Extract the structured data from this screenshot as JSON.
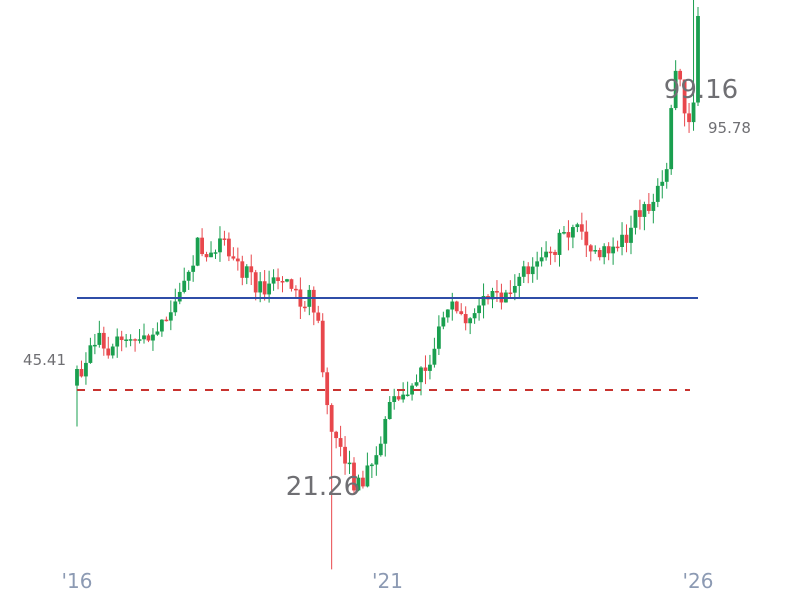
{
  "chart_data": {
    "type": "candlestick",
    "colors": {
      "up": "#1a9f4f",
      "down": "#e8474c",
      "reference_line": "#2f4ea8",
      "dashed_line": "#c8332f",
      "labels": "#6f6f73",
      "ticks": "#8c9ab3"
    },
    "x_ticks": [
      {
        "label": "'16",
        "year": 2016.0
      },
      {
        "label": "'21",
        "year": 2021.0
      },
      {
        "label": "'26",
        "year": 2026.0
      }
    ],
    "annotations": {
      "high": {
        "label": "99.16",
        "value": 99.16
      },
      "low": {
        "label": "21.26",
        "value": 21.26
      },
      "last": {
        "label": "95.78",
        "value": 95.78
      },
      "start": {
        "label": "45.41",
        "value": 45.41
      }
    },
    "reference_lines": [
      {
        "name": "solid",
        "value": 57.8,
        "style": "solid"
      },
      {
        "name": "dashed",
        "value": 45.41,
        "style": "dashed"
      }
    ],
    "ylim": [
      10,
      112
    ],
    "xlim": [
      2015.8,
      2027.3
    ],
    "anchors": [
      [
        2016.0,
        47.5
      ],
      [
        2016.15,
        49.0
      ],
      [
        2016.35,
        52.5
      ],
      [
        2016.55,
        51.0
      ],
      [
        2016.75,
        52.0
      ],
      [
        2016.95,
        53.0
      ],
      [
        2017.15,
        52.5
      ],
      [
        2017.35,
        53.5
      ],
      [
        2017.55,
        57.0
      ],
      [
        2017.75,
        61.0
      ],
      [
        2017.95,
        65.0
      ],
      [
        2018.15,
        63.0
      ],
      [
        2018.35,
        65.0
      ],
      [
        2018.55,
        62.5
      ],
      [
        2018.75,
        61.0
      ],
      [
        2018.95,
        59.0
      ],
      [
        2019.15,
        60.5
      ],
      [
        2019.35,
        61.5
      ],
      [
        2019.55,
        57.5
      ],
      [
        2019.75,
        58.0
      ],
      [
        2019.9,
        53.0
      ],
      [
        2020.0,
        45.5
      ],
      [
        2020.1,
        39.0
      ],
      [
        2020.25,
        37.5
      ],
      [
        2020.45,
        33.0
      ],
      [
        2020.65,
        33.5
      ],
      [
        2020.85,
        38.0
      ],
      [
        2021.05,
        45.0
      ],
      [
        2021.25,
        44.5
      ],
      [
        2021.45,
        46.5
      ],
      [
        2021.65,
        49.0
      ],
      [
        2021.85,
        54.0
      ],
      [
        2022.05,
        56.5
      ],
      [
        2022.25,
        54.5
      ],
      [
        2022.45,
        56.0
      ],
      [
        2022.65,
        59.0
      ],
      [
        2022.85,
        58.0
      ],
      [
        2023.05,
        60.0
      ],
      [
        2023.25,
        62.0
      ],
      [
        2023.45,
        62.0
      ],
      [
        2023.65,
        63.5
      ],
      [
        2023.85,
        67.0
      ],
      [
        2024.05,
        67.5
      ],
      [
        2024.25,
        65.0
      ],
      [
        2024.45,
        63.5
      ],
      [
        2024.65,
        64.5
      ],
      [
        2024.85,
        66.0
      ],
      [
        2025.05,
        69.5
      ],
      [
        2025.25,
        71.0
      ],
      [
        2025.4,
        72.5
      ],
      [
        2025.5,
        76.0
      ],
      [
        2025.62,
        90.0
      ],
      [
        2025.72,
        88.0
      ],
      [
        2025.8,
        82.0
      ],
      [
        2025.9,
        80.0
      ],
      [
        2025.97,
        93.0
      ],
      [
        2026.0,
        95.78
      ]
    ],
    "candle_count": 140
  }
}
